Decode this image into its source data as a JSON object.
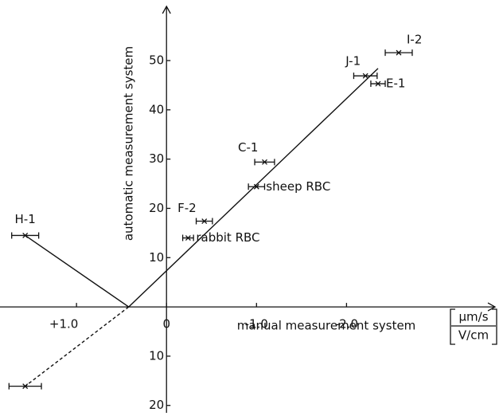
{
  "chart_data": {
    "type": "scatter",
    "x_label": "manual measurement system",
    "x_unit_top": "µm/s",
    "x_unit_bottom": "V/cm",
    "y_label": "automatic measurement system",
    "xlim": [
      1.85,
      -3.65
    ],
    "ylim": [
      -21.5,
      61
    ],
    "xticks": [
      {
        "value": 1,
        "label": "+1.0"
      },
      0,
      {
        "value": -1,
        "label": "-1.0"
      },
      {
        "value": -2,
        "label": "-2.0"
      }
    ],
    "yticks": [
      {
        "value": -20,
        "label": "20"
      },
      {
        "value": -10,
        "label": "10"
      },
      10,
      20,
      30,
      40,
      50
    ],
    "color": "#111111",
    "points": [
      {
        "label": "I-2",
        "x": -2.58,
        "y": 51.6,
        "xerr": 0.15
      },
      {
        "label": "J-1",
        "x": -2.21,
        "y": 46.9,
        "xerr": 0.13
      },
      {
        "label": "E-1",
        "x": -2.35,
        "y": 45.3,
        "xerr": 0.08
      },
      {
        "label": "C-1",
        "x": -1.09,
        "y": 29.4,
        "xerr": 0.11
      },
      {
        "label": "sheep RBC",
        "x": -1.0,
        "y": 24.4,
        "xerr": 0.09
      },
      {
        "label": "F-2",
        "x": -0.42,
        "y": 17.4,
        "xerr": 0.09
      },
      {
        "label": "rabbit RBC",
        "x": -0.24,
        "y": 14.0,
        "xerr": 0.06
      },
      {
        "label": "H-1",
        "x": 1.57,
        "y": 14.5,
        "xerr": 0.15
      },
      {
        "label": null,
        "x": 1.57,
        "y": -16.1,
        "xerr": 0.18
      }
    ],
    "lines": [
      {
        "style": "solid",
        "x": [
          0.42,
          -2.35
        ],
        "y": [
          0,
          48.4
        ]
      },
      {
        "style": "solid",
        "x": [
          1.57,
          0.42
        ],
        "y": [
          14.5,
          0
        ]
      },
      {
        "style": "dashed",
        "x": [
          0.42,
          1.57
        ],
        "y": [
          0,
          -16.1
        ]
      }
    ]
  }
}
